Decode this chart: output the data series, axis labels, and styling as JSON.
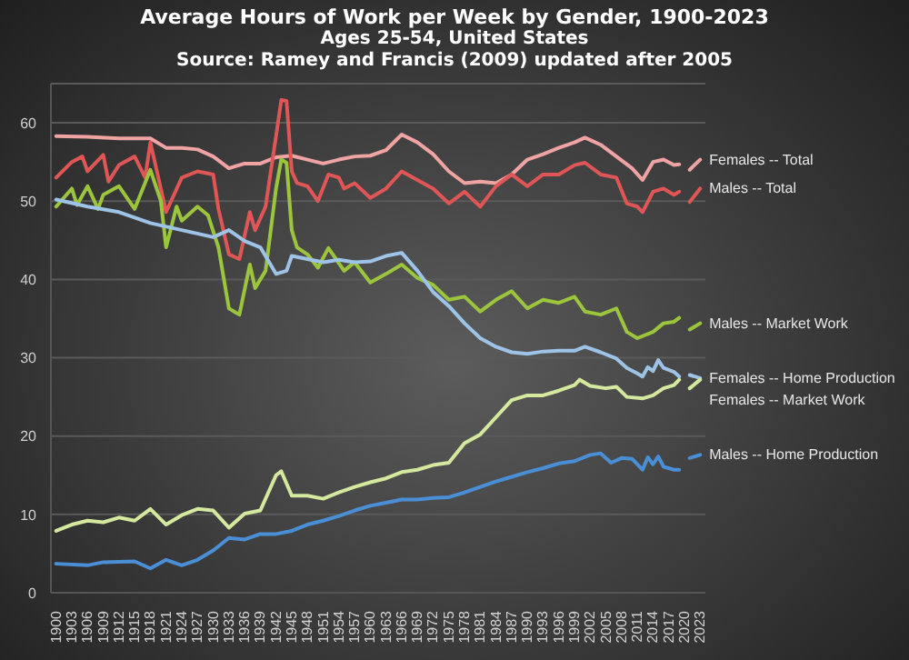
{
  "chart_data": {
    "type": "line",
    "title": "Average Hours of Work per Week by Gender, 1900-2023",
    "subtitle": "Ages 25-54, United States",
    "annotations": [
      "Source: Ramey and Francis (2009) updated after 2005"
    ],
    "xlim": [
      1899,
      2024
    ],
    "xticks": [
      1900,
      1903,
      1906,
      1909,
      1912,
      1915,
      1918,
      1921,
      1924,
      1927,
      1930,
      1933,
      1936,
      1939,
      1942,
      1945,
      1948,
      1951,
      1954,
      1957,
      1960,
      1963,
      1966,
      1969,
      1972,
      1975,
      1978,
      1981,
      1984,
      1987,
      1990,
      1993,
      1996,
      1999,
      2002,
      2005,
      2008,
      2011,
      2014,
      2017,
      2020,
      2023
    ],
    "ylim": [
      0,
      65
    ],
    "yticks": [
      0,
      10,
      20,
      30,
      40,
      50,
      60
    ],
    "grid": "y",
    "marker": "none",
    "line_style": "solid",
    "series": [
      {
        "name": "Females -- Total",
        "color": "#f0a3a3",
        "x": [
          1900,
          1906,
          1912,
          1918,
          1921,
          1924,
          1927,
          1930,
          1933,
          1936,
          1939,
          1942,
          1945,
          1948,
          1951,
          1954,
          1957,
          1960,
          1963,
          1966,
          1969,
          1972,
          1975,
          1978,
          1981,
          1984,
          1987,
          1990,
          1993,
          1996,
          1999,
          2001,
          2004,
          2007,
          2010,
          2012,
          2014,
          2016,
          2018,
          2019,
          2020,
          2021,
          2023
        ],
        "values": [
          58.3,
          58.2,
          58,
          58,
          56.8,
          56.8,
          56.6,
          55.7,
          54.2,
          54.8,
          54.8,
          55.6,
          55.8,
          55.3,
          54.8,
          55.3,
          55.7,
          55.8,
          56.5,
          58.5,
          57.5,
          56,
          53.8,
          52.3,
          52.5,
          52.3,
          53.4,
          55.3,
          56,
          56.8,
          57.5,
          58.1,
          57.2,
          55.7,
          54.2,
          52.7,
          55,
          55.3,
          54.6,
          54.7,
          null,
          54,
          55.3
        ]
      },
      {
        "name": "Males -- Total",
        "color": "#e05555",
        "x": [
          1900,
          1903,
          1905,
          1906,
          1909,
          1910,
          1912,
          1915,
          1917,
          1918,
          1921,
          1924,
          1927,
          1930,
          1931,
          1933,
          1935,
          1937,
          1938,
          1940,
          1942,
          1943,
          1944,
          1945,
          1946,
          1948,
          1950,
          1952,
          1954,
          1955,
          1957,
          1960,
          1963,
          1966,
          1969,
          1972,
          1975,
          1978,
          1981,
          1984,
          1987,
          1990,
          1993,
          1996,
          1999,
          2001,
          2004,
          2007,
          2009,
          2011,
          2012,
          2014,
          2016,
          2018,
          2019,
          2020,
          2021,
          2023
        ],
        "values": [
          53,
          55,
          55.7,
          53.8,
          55.9,
          52.5,
          54.6,
          55.7,
          53,
          57.5,
          48.6,
          53,
          53.8,
          53.4,
          49,
          43.2,
          42.6,
          48.6,
          46.3,
          49.3,
          58.3,
          62.9,
          62.8,
          53.8,
          52.3,
          51.9,
          50,
          53.4,
          53,
          51.6,
          52.3,
          50.4,
          51.6,
          53.8,
          52.7,
          51.6,
          49.7,
          51.2,
          49.3,
          51.9,
          53.4,
          51.9,
          53.4,
          53.4,
          54.6,
          54.9,
          53.4,
          53,
          49.7,
          49.3,
          48.6,
          51.2,
          51.6,
          50.8,
          51.2,
          null,
          49.9,
          51.6
        ]
      },
      {
        "name": "Males -- Market Work",
        "color": "#9bc53d",
        "x": [
          1900,
          1903,
          1904,
          1906,
          1908,
          1909,
          1912,
          1915,
          1918,
          1920,
          1921,
          1923,
          1924,
          1927,
          1929,
          1931,
          1933,
          1935,
          1937,
          1938,
          1940,
          1942,
          1943,
          1944,
          1945,
          1946,
          1948,
          1950,
          1952,
          1955,
          1957,
          1960,
          1963,
          1966,
          1969,
          1972,
          1975,
          1978,
          1981,
          1984,
          1987,
          1990,
          1993,
          1996,
          1999,
          2001,
          2004,
          2007,
          2009,
          2011,
          2014,
          2016,
          2018,
          2019,
          2020,
          2021,
          2023
        ],
        "values": [
          49.3,
          51.6,
          49.5,
          51.9,
          49,
          50.8,
          51.9,
          49,
          54,
          50,
          44.1,
          49.3,
          47.5,
          49.3,
          48.2,
          44.1,
          36.3,
          35.5,
          41.9,
          38.9,
          41.1,
          51.6,
          55.3,
          54.9,
          46.3,
          44.1,
          43.2,
          41.5,
          44,
          41.1,
          42.2,
          39.6,
          40.7,
          41.9,
          40.2,
          39.3,
          37.4,
          37.8,
          35.9,
          37.4,
          38.5,
          36.3,
          37.4,
          37,
          37.8,
          35.9,
          35.5,
          36.3,
          33.3,
          32.5,
          33.3,
          34.4,
          34.6,
          35.1,
          null,
          33.6,
          34.4
        ]
      },
      {
        "name": "Females -- Home Production",
        "color": "#9dc3e6",
        "x": [
          1900,
          1906,
          1912,
          1918,
          1924,
          1930,
          1933,
          1936,
          1939,
          1942,
          1944,
          1945,
          1948,
          1951,
          1954,
          1957,
          1960,
          1963,
          1966,
          1969,
          1972,
          1975,
          1978,
          1981,
          1984,
          1987,
          1990,
          1993,
          1996,
          1999,
          2001,
          2004,
          2007,
          2009,
          2011,
          2012,
          2013,
          2014,
          2015,
          2016,
          2018,
          2019,
          2020,
          2021,
          2023
        ],
        "values": [
          50.2,
          49.3,
          48.6,
          47.2,
          46.3,
          45.4,
          46.3,
          44.9,
          44.1,
          40.7,
          41.1,
          43,
          42.6,
          42.2,
          42.5,
          42.2,
          42.3,
          43,
          43.4,
          41.1,
          38.4,
          36.6,
          34.4,
          32.5,
          31.4,
          30.7,
          30.5,
          30.8,
          30.9,
          30.9,
          31.4,
          30.7,
          29.9,
          28.7,
          28,
          27.6,
          28.8,
          28.3,
          29.7,
          28.7,
          28.2,
          27.6,
          null,
          27.8,
          27.4
        ]
      },
      {
        "name": "Females -- Market Work",
        "color": "#d4e89e",
        "x": [
          1900,
          1903,
          1906,
          1909,
          1912,
          1915,
          1918,
          1921,
          1924,
          1927,
          1930,
          1933,
          1936,
          1939,
          1942,
          1943,
          1945,
          1948,
          1951,
          1954,
          1957,
          1960,
          1963,
          1966,
          1969,
          1972,
          1975,
          1978,
          1981,
          1984,
          1987,
          1990,
          1993,
          1996,
          1999,
          2000,
          2002,
          2005,
          2007,
          2009,
          2012,
          2014,
          2016,
          2018,
          2019,
          2020,
          2021,
          2023
        ],
        "values": [
          7.9,
          8.7,
          9.2,
          9,
          9.6,
          9.2,
          10.7,
          8.7,
          9.9,
          10.7,
          10.5,
          8.3,
          10.1,
          10.5,
          15,
          15.5,
          12.4,
          12.4,
          12,
          12.8,
          13.5,
          14.1,
          14.6,
          15.4,
          15.7,
          16.3,
          16.6,
          19.1,
          20.2,
          22.4,
          24.6,
          25.2,
          25.2,
          25.8,
          26.5,
          27.2,
          26.4,
          26.1,
          26.3,
          25,
          24.8,
          25.2,
          26.1,
          26.5,
          27.2,
          null,
          26.1,
          27.2
        ]
      },
      {
        "name": "Males -- Home Production",
        "color": "#4a8fd6",
        "x": [
          1900,
          1906,
          1909,
          1915,
          1918,
          1921,
          1924,
          1927,
          1930,
          1933,
          1936,
          1939,
          1942,
          1945,
          1948,
          1951,
          1954,
          1957,
          1960,
          1963,
          1966,
          1969,
          1972,
          1975,
          1978,
          1981,
          1984,
          1987,
          1990,
          1993,
          1996,
          1999,
          2002,
          2004,
          2006,
          2008,
          2010,
          2012,
          2013,
          2014,
          2015,
          2016,
          2018,
          2019,
          2020,
          2021,
          2023
        ],
        "values": [
          3.7,
          3.5,
          3.9,
          4,
          3.1,
          4.2,
          3.5,
          4.2,
          5.4,
          7,
          6.8,
          7.5,
          7.5,
          7.9,
          8.7,
          9.2,
          9.8,
          10.5,
          11.1,
          11.5,
          11.9,
          11.9,
          12.1,
          12.2,
          12.8,
          13.5,
          14.2,
          14.8,
          15.4,
          15.9,
          16.5,
          16.8,
          17.6,
          17.8,
          16.6,
          17.2,
          17.1,
          15.7,
          17.3,
          16.4,
          17.4,
          16.1,
          15.7,
          15.7,
          null,
          17.2,
          17.6
        ]
      }
    ]
  }
}
